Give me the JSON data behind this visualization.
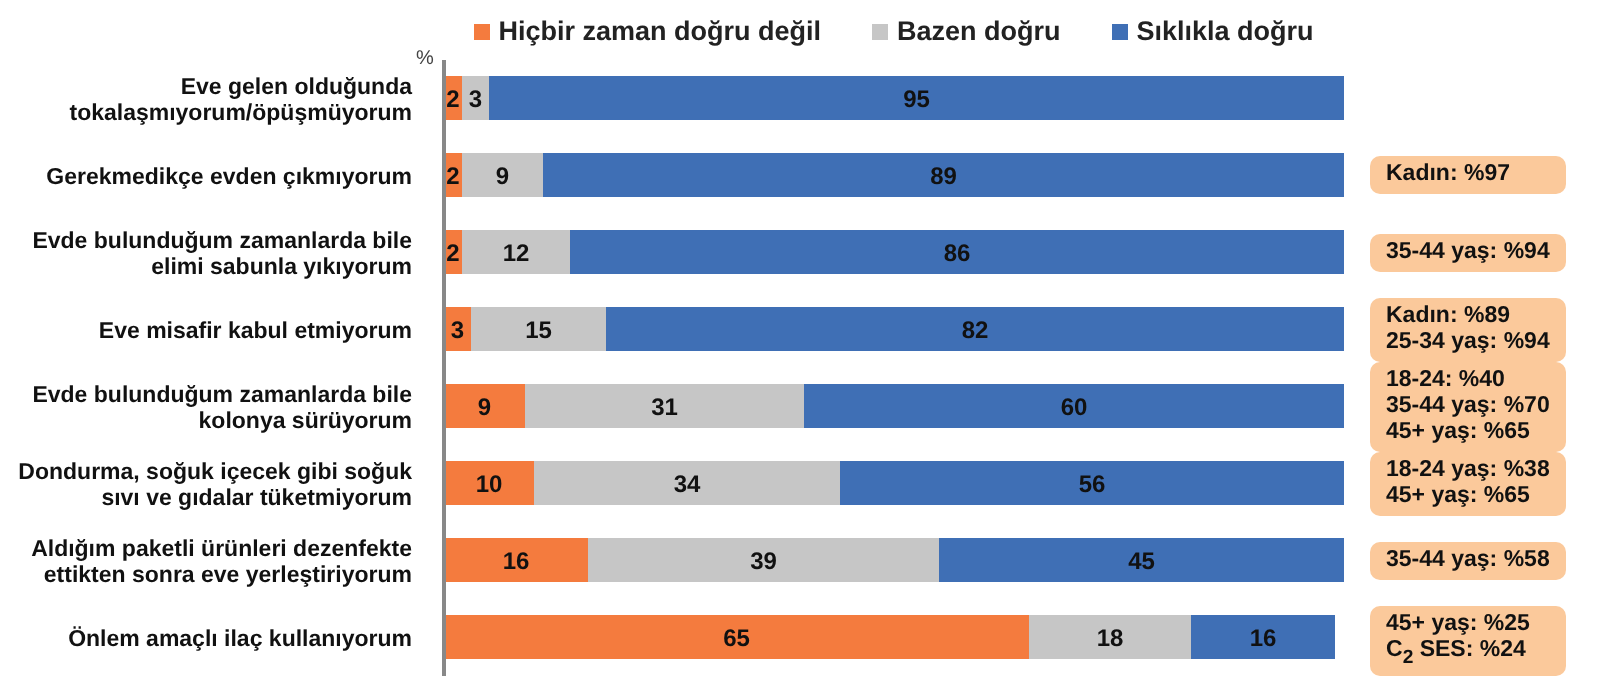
{
  "chart_data": {
    "type": "bar",
    "orientation": "horizontal",
    "stacked": true,
    "data_labels": true,
    "legend": "top",
    "tick_labels": "y",
    "categories": [
      "Eve gelen olduğunda tokalaşmıyorum/öpüşmüyorum",
      "Gerekmedikçe evden çıkmıyorum",
      "Evde bulunduğum zamanlarda bile elimi sabunla yıkıyorum",
      "Eve misafir kabul etmiyorum",
      "Evde bulunduğum zamanlarda bile kolonya sürüyorum",
      "Dondurma, soğuk içecek gibi soğuk sıvı ve gıdalar tüketmiyorum",
      "Aldığım paketli ürünleri dezenfekte ettikten sonra eve yerleştiriyorum",
      "Önlem amaçlı ilaç kullanıyorum"
    ],
    "series": [
      {
        "name": "Hiçbir zaman doğru değil",
        "color": "#f47b3e",
        "values": [
          2,
          2,
          2,
          3,
          9,
          10,
          16,
          65
        ]
      },
      {
        "name": "Bazen doğru",
        "color": "#c6c6c6",
        "values": [
          3,
          9,
          12,
          15,
          31,
          34,
          39,
          18
        ]
      },
      {
        "name": "Sıklıkla doğru",
        "color": "#3f6fb5",
        "values": [
          95,
          89,
          86,
          82,
          60,
          56,
          45,
          16
        ]
      }
    ],
    "annotations": [
      "%",
      "Kadın: %97",
      "35-44 yaş: %94",
      "Kadın: %89\n25-34 yaş: %94",
      "18-24: %40\n35-44 yaş: %70\n45+ yaş: %65",
      "18-24 yaş: %38\n45+ yaş: %65",
      "35-44 yaş: %58",
      "45+ yaş: %25\nC$_{2}$ SES: %24"
    ]
  }
}
